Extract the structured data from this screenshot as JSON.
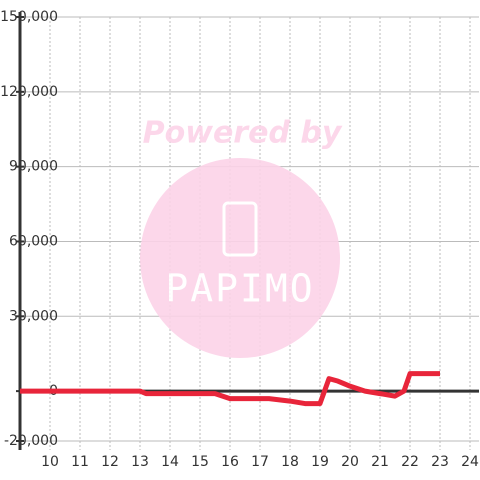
{
  "chart_data": {
    "type": "line",
    "watermark": {
      "text": "Powered by",
      "logo": "PAPIMO"
    },
    "x": [
      9,
      13,
      13.2,
      15.5,
      16,
      17.3,
      18,
      18.5,
      19,
      19.3,
      19.6,
      20,
      20.5,
      21,
      21.5,
      21.8,
      22,
      23
    ],
    "series": [
      {
        "color": "#e8253a",
        "values": [
          0,
          0,
          -1000,
          -1000,
          -3000,
          -3000,
          -4000,
          -5000,
          -5000,
          5000,
          4000,
          2000,
          0,
          -1000,
          -2000,
          0,
          7000,
          7000
        ]
      }
    ],
    "xlim": [
      9,
      24.3
    ],
    "xticks": [
      10,
      11,
      12,
      13,
      14,
      15,
      16,
      17,
      18,
      19,
      20,
      21,
      22,
      23,
      24
    ],
    "ylim": [
      -20000,
      150000
    ],
    "yticks": [
      {
        "value": -20000,
        "label": "-20,000"
      },
      0,
      {
        "value": 30000,
        "label": "30,000"
      },
      {
        "value": 60000,
        "label": "60,000"
      },
      {
        "value": 90000,
        "label": "90,000"
      },
      {
        "value": 120000,
        "label": "120,000"
      },
      {
        "value": 150000,
        "label": "150,000"
      }
    ],
    "grid": true
  }
}
